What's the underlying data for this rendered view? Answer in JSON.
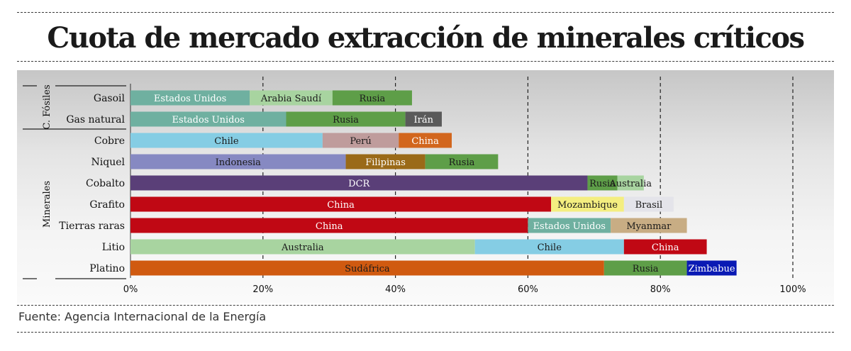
{
  "header": {
    "title": "Cuota de mercado extracción de minerales críticos"
  },
  "footer": {
    "source": "Fuente: Agencia Internacional de la Energía"
  },
  "chart_data": {
    "type": "bar",
    "orientation": "horizontal",
    "stacked": true,
    "title": "Cuota de mercado extracción de minerales críticos",
    "xlim": [
      0,
      100
    ],
    "x_ticks": [
      0,
      20,
      40,
      60,
      80,
      100
    ],
    "x_tick_labels": [
      "0%",
      "20%",
      "40%",
      "60%",
      "80%",
      "100%"
    ],
    "grid": "vertical dashed",
    "groups": [
      {
        "label": "C. Fósiles",
        "categories": [
          "Gasoil",
          "Gas natural"
        ]
      },
      {
        "label": "Minerales",
        "categories": [
          "Cobre",
          "Niquel",
          "Cobalto",
          "Grafito",
          "Tierras raras",
          "Litio",
          "Platino"
        ]
      }
    ],
    "categories": [
      "Gasoil",
      "Gas natural",
      "Cobre",
      "Niquel",
      "Cobalto",
      "Grafito",
      "Tierras raras",
      "Litio",
      "Platino"
    ],
    "rows": [
      {
        "category": "Gasoil",
        "segments": [
          {
            "label": "Estados Unidos",
            "value": 18,
            "color": "#6fb0a0",
            "text_color": "#ffffff"
          },
          {
            "label": "Arabia Saudí",
            "value": 12.5,
            "color": "#a8d4a0",
            "text_color": "#1a1a1a"
          },
          {
            "label": "Rusia",
            "value": 12,
            "color": "#5e9e48",
            "text_color": "#1a1a1a"
          }
        ]
      },
      {
        "category": "Gas natural",
        "segments": [
          {
            "label": "Estados Unidos",
            "value": 23.5,
            "color": "#6fb0a0",
            "text_color": "#ffffff"
          },
          {
            "label": "Rusia",
            "value": 18,
            "color": "#5e9e48",
            "text_color": "#1a1a1a"
          },
          {
            "label": "Irán",
            "value": 5.5,
            "color": "#5a5a5a",
            "text_color": "#ffffff"
          }
        ]
      },
      {
        "category": "Cobre",
        "segments": [
          {
            "label": "Chile",
            "value": 29,
            "color": "#85cde4",
            "text_color": "#1a1a1a"
          },
          {
            "label": "Perú",
            "value": 11.5,
            "color": "#bf9c9c",
            "text_color": "#1a1a1a"
          },
          {
            "label": "China",
            "value": 8,
            "color": "#d2661d",
            "text_color": "#ffffff"
          }
        ]
      },
      {
        "category": "Niquel",
        "segments": [
          {
            "label": "Indonesia",
            "value": 32.5,
            "color": "#8689c2",
            "text_color": "#1a1a1a"
          },
          {
            "label": "Filipinas",
            "value": 12,
            "color": "#9a6a18",
            "text_color": "#ffffff"
          },
          {
            "label": "Rusia",
            "value": 11,
            "color": "#5e9e48",
            "text_color": "#1a1a1a"
          }
        ]
      },
      {
        "category": "Cobalto",
        "segments": [
          {
            "label": "DCR",
            "value": 69,
            "color": "#5a3f78",
            "text_color": "#ffffff"
          },
          {
            "label": "Rusia",
            "value": 4.5,
            "color": "#5e9e48",
            "text_color": "#1a1a1a"
          },
          {
            "label": "Australia",
            "value": 4,
            "color": "#a8d4a0",
            "text_color": "#1a1a1a"
          }
        ]
      },
      {
        "category": "Grafito",
        "segments": [
          {
            "label": "China",
            "value": 63.5,
            "color": "#c00814",
            "text_color": "#ffffff"
          },
          {
            "label": "Mozambique",
            "value": 11,
            "color": "#f4ee80",
            "text_color": "#1a1a1a"
          },
          {
            "label": "Brasil",
            "value": 7.5,
            "color": "#e4e4ea",
            "text_color": "#1a1a1a"
          }
        ]
      },
      {
        "category": "Tierras raras",
        "segments": [
          {
            "label": "China",
            "value": 60,
            "color": "#c00814",
            "text_color": "#ffffff"
          },
          {
            "label": "Estados Unidos",
            "value": 12.5,
            "color": "#6fb0a0",
            "text_color": "#ffffff"
          },
          {
            "label": "Myanmar",
            "value": 11.5,
            "color": "#c8ad84",
            "text_color": "#1a1a1a"
          }
        ]
      },
      {
        "category": "Litio",
        "segments": [
          {
            "label": "Australia",
            "value": 52,
            "color": "#a8d4a0",
            "text_color": "#1a1a1a"
          },
          {
            "label": "Chile",
            "value": 22.5,
            "color": "#85cde4",
            "text_color": "#1a1a1a"
          },
          {
            "label": "China",
            "value": 12.5,
            "color": "#c00814",
            "text_color": "#ffffff"
          }
        ]
      },
      {
        "category": "Platino",
        "segments": [
          {
            "label": "Sudáfrica",
            "value": 71.5,
            "color": "#d05a10",
            "text_color": "#1a1a1a"
          },
          {
            "label": "Rusia",
            "value": 12.5,
            "color": "#5e9e48",
            "text_color": "#1a1a1a"
          },
          {
            "label": "Zimbabue",
            "value": 7.5,
            "color": "#0a1ab4",
            "text_color": "#ffffff"
          }
        ]
      }
    ]
  }
}
